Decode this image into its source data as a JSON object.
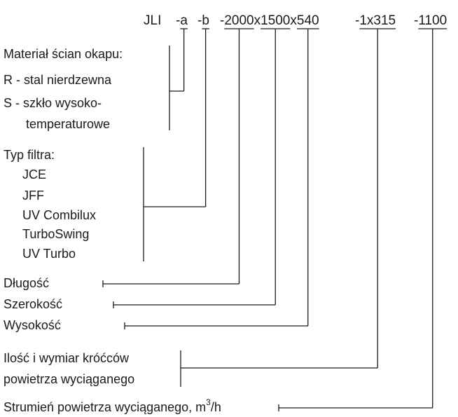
{
  "code": {
    "prefix": "JLI",
    "parts": [
      {
        "sep": "-",
        "value": "a"
      },
      {
        "sep": "-",
        "value": "b"
      },
      {
        "sep": "-",
        "value": "2000"
      },
      {
        "sep": "x",
        "value": "1500"
      },
      {
        "sep": "x",
        "value": "540"
      },
      {
        "sep": "-",
        "value": "1x315"
      },
      {
        "sep": "-",
        "value": "1100"
      }
    ]
  },
  "material": {
    "title": "Materiał ścian okapu:",
    "options": [
      "R - stal nierdzewna",
      "S - szkło wysoko-",
      "temperaturowe"
    ]
  },
  "filter": {
    "title": "Typ filtra:",
    "options": [
      "JCE",
      "JFF",
      "UV Combilux",
      "TurboSwing",
      "UV Turbo"
    ]
  },
  "dimensions": [
    "Długość",
    "Szerokość",
    "Wysokość"
  ],
  "nozzles": [
    "Ilość i wymiar króćców",
    "powietrza wyciąganego"
  ],
  "airflow": {
    "text": "Strumień powietrza wyciąganego, m",
    "sup": "3",
    "suffix": "/h"
  }
}
